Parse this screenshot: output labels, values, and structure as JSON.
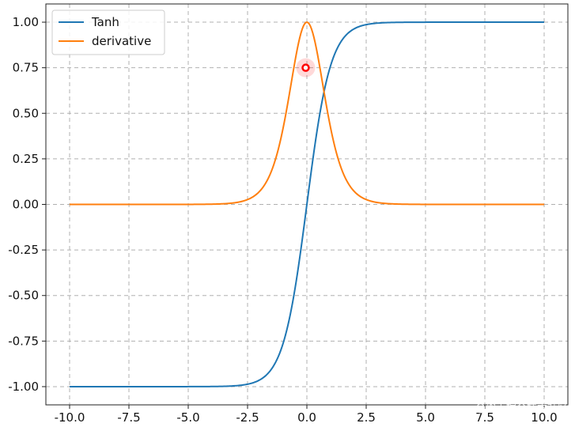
{
  "chart_data": {
    "type": "line",
    "title": "",
    "xlabel": "",
    "ylabel": "",
    "xlim": [
      -11,
      11
    ],
    "ylim": [
      -1.1,
      1.1
    ],
    "x_ticks": [
      -10.0,
      -7.5,
      -5.0,
      -2.5,
      0.0,
      2.5,
      5.0,
      7.5,
      10.0
    ],
    "x_tick_labels": [
      "-10.0",
      "-7.5",
      "-5.0",
      "-2.5",
      "0.0",
      "2.5",
      "5.0",
      "7.5",
      "10.0"
    ],
    "y_ticks": [
      -1.0,
      -0.75,
      -0.5,
      -0.25,
      0.0,
      0.25,
      0.5,
      0.75,
      1.0
    ],
    "y_tick_labels": [
      "-1.00",
      "-0.75",
      "-0.50",
      "-0.25",
      "0.00",
      "0.25",
      "0.50",
      "0.75",
      "1.00"
    ],
    "grid": true,
    "legend_position": "top-left",
    "series": [
      {
        "name": "Tanh",
        "color": "#1f77b4",
        "x": [
          -10,
          -8,
          -6,
          -5,
          -4,
          -3.5,
          -3,
          -2.5,
          -2,
          -1.5,
          -1,
          -0.5,
          0,
          0.5,
          1,
          1.5,
          2,
          2.5,
          3,
          3.5,
          4,
          5,
          6,
          8,
          10
        ],
        "y": [
          -1.0,
          -1.0,
          -1.0,
          -0.9999,
          -0.9993,
          -0.9982,
          -0.9951,
          -0.9866,
          -0.964,
          -0.9051,
          -0.7616,
          -0.4621,
          0.0,
          0.4621,
          0.7616,
          0.9051,
          0.964,
          0.9866,
          0.9951,
          0.9982,
          0.9993,
          0.9999,
          1.0,
          1.0,
          1.0
        ]
      },
      {
        "name": "derivative",
        "color": "#ff7f0e",
        "x": [
          -10,
          -8,
          -6,
          -5,
          -4,
          -3.5,
          -3,
          -2.5,
          -2,
          -1.5,
          -1,
          -0.5,
          0,
          0.5,
          1,
          1.5,
          2,
          2.5,
          3,
          3.5,
          4,
          5,
          6,
          8,
          10
        ],
        "y": [
          0.0,
          0.0,
          0.0,
          0.0002,
          0.0013,
          0.0036,
          0.0099,
          0.0266,
          0.0707,
          0.1807,
          0.42,
          0.7864,
          1.0,
          0.7864,
          0.42,
          0.1807,
          0.0707,
          0.0266,
          0.0099,
          0.0036,
          0.0013,
          0.0002,
          0.0,
          0.0,
          0.0
        ]
      }
    ],
    "highlight_marker": {
      "x": -0.05,
      "y": 0.75,
      "color": "#ff0000"
    }
  },
  "watermark": {
    "text": "@稀土掘金技术社区"
  }
}
